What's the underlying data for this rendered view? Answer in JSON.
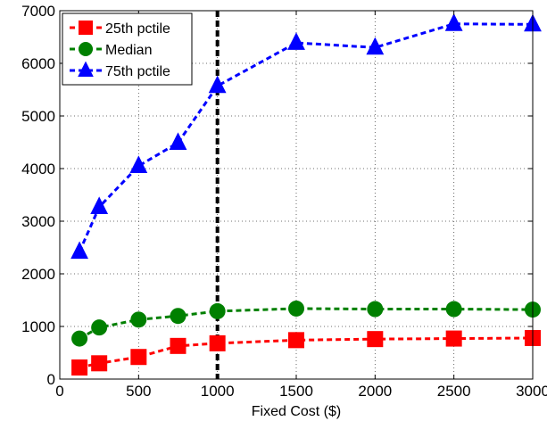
{
  "chart_data": {
    "type": "line",
    "title": "",
    "xlabel": "Fixed Cost ($)",
    "ylabel": "",
    "xlim": [
      0,
      3000
    ],
    "ylim": [
      0,
      7000
    ],
    "xticks": [
      0,
      500,
      1000,
      1500,
      2000,
      2500,
      3000
    ],
    "yticks": [
      0,
      1000,
      2000,
      3000,
      4000,
      5000,
      6000,
      7000
    ],
    "grid": true,
    "legend_position": "top-left",
    "x": [
      125,
      250,
      500,
      750,
      1000,
      1500,
      2000,
      2500,
      3000
    ],
    "series": [
      {
        "name": "25th pctile",
        "color": "#ff0000",
        "marker": "square",
        "line_style": "dashed",
        "values": [
          220,
          300,
          420,
          630,
          680,
          740,
          760,
          770,
          780
        ]
      },
      {
        "name": "Median",
        "color": "#008000",
        "marker": "circle",
        "line_style": "dashed",
        "values": [
          770,
          980,
          1130,
          1200,
          1290,
          1340,
          1330,
          1330,
          1320
        ]
      },
      {
        "name": "75th pctile",
        "color": "#0000ff",
        "marker": "triangle",
        "line_style": "dashed",
        "values": [
          2420,
          3270,
          4050,
          4490,
          5570,
          6390,
          6300,
          6750,
          6740
        ]
      }
    ],
    "annotations": [
      {
        "type": "vertical-line",
        "x": 1000,
        "color": "#000000",
        "line_style": "dashed"
      }
    ]
  }
}
